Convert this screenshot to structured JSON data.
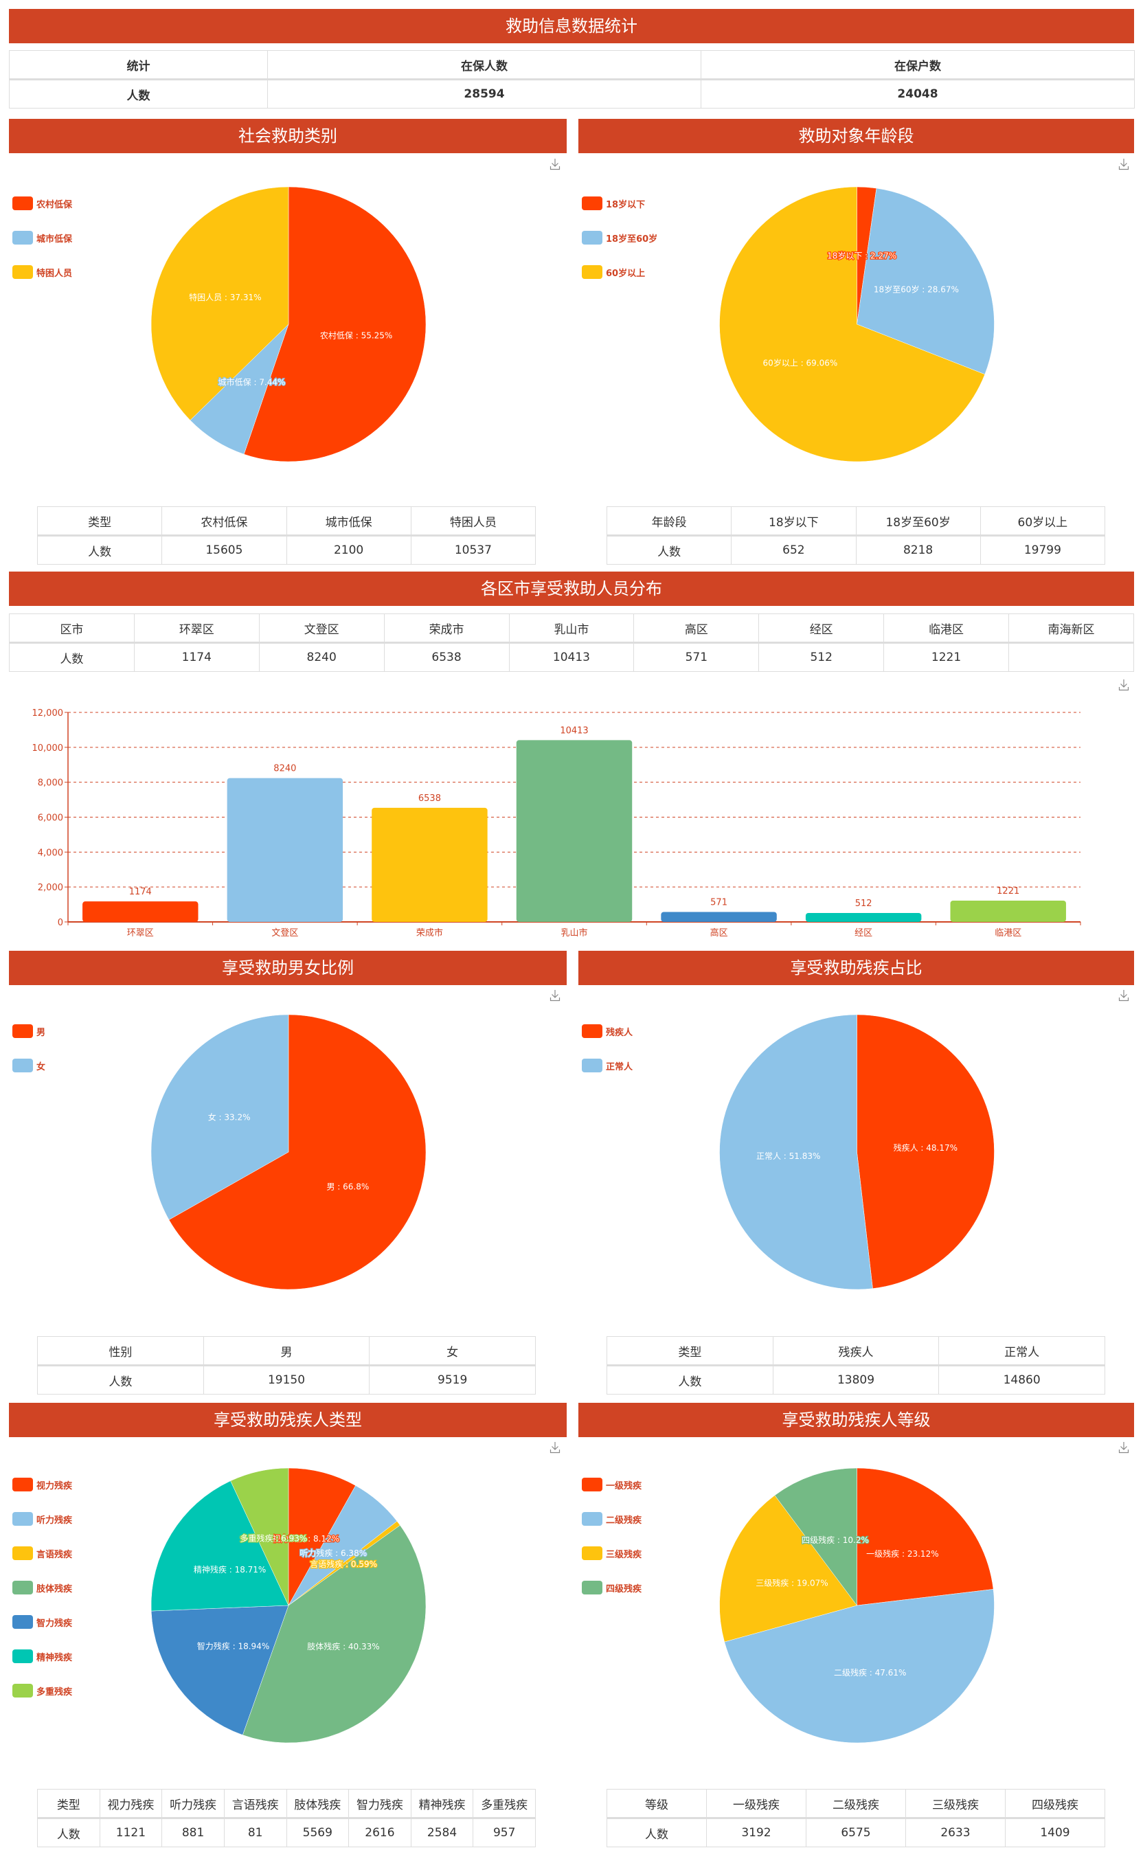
{
  "page": {
    "title": "救助信息数据统计",
    "accent_color": "#d04424"
  },
  "summary_table": {
    "headers": [
      "统计",
      "在保人数",
      "在保户数"
    ],
    "row": [
      "人数",
      "28594",
      "24048"
    ]
  },
  "sections": {
    "aid_category": {
      "title": "社会救助类别",
      "table": {
        "headers": [
          "类型",
          "农村低保",
          "城市低保",
          "特困人员"
        ],
        "row": [
          "人数",
          "15605",
          "2100",
          "10537"
        ]
      }
    },
    "age_group": {
      "title": "救助对象年龄段",
      "table": {
        "headers": [
          "年龄段",
          "18岁以下",
          "18岁至60岁",
          "60岁以上"
        ],
        "row": [
          "人数",
          "652",
          "8218",
          "19799"
        ]
      }
    },
    "district": {
      "title": "各区市享受救助人员分布",
      "table": {
        "headers": [
          "区市",
          "环翠区",
          "文登区",
          "荣成市",
          "乳山市",
          "高区",
          "经区",
          "临港区",
          "南海新区"
        ],
        "row": [
          "人数",
          "1174",
          "8240",
          "6538",
          "10413",
          "571",
          "512",
          "1221",
          ""
        ]
      }
    },
    "gender": {
      "title": "享受救助男女比例",
      "table": {
        "headers": [
          "性别",
          "男",
          "女"
        ],
        "row": [
          "人数",
          "19150",
          "9519"
        ]
      }
    },
    "disability_ratio": {
      "title": "享受救助残疾占比",
      "table": {
        "headers": [
          "类型",
          "残疾人",
          "正常人"
        ],
        "row": [
          "人数",
          "13809",
          "14860"
        ]
      }
    },
    "disability_type": {
      "title": "享受救助残疾人类型",
      "table": {
        "headers": [
          "类型",
          "视力残疾",
          "听力残疾",
          "言语残疾",
          "肢体残疾",
          "智力残疾",
          "精神残疾",
          "多重残疾"
        ],
        "row": [
          "人数",
          "1121",
          "881",
          "81",
          "5569",
          "2616",
          "2584",
          "957"
        ]
      }
    },
    "disability_level": {
      "title": "享受救助残疾人等级",
      "table": {
        "headers": [
          "等级",
          "一级残疾",
          "二级残疾",
          "三级残疾",
          "四级残疾"
        ],
        "row": [
          "人数",
          "3192",
          "6575",
          "2633",
          "1409"
        ]
      }
    }
  },
  "icons": {
    "download": "download-icon"
  },
  "chart_data": [
    {
      "id": "aid_category",
      "type": "pie",
      "title": "社会救助类别",
      "legend": "left",
      "labels": [
        "农村低保",
        "城市低保",
        "特困人员"
      ],
      "values": [
        15605,
        2100,
        10537
      ],
      "percent_labels": [
        "农村低保 : 55.25%",
        "城市低保 : 7.44%",
        "特困人员 : 37.31%"
      ],
      "colors": [
        "#ff4000",
        "#8dc3e8",
        "#fec30e"
      ]
    },
    {
      "id": "age_group",
      "type": "pie",
      "title": "救助对象年龄段",
      "legend": "left",
      "labels": [
        "18岁以下",
        "18岁至60岁",
        "60岁以上"
      ],
      "values": [
        652,
        8218,
        19799
      ],
      "percent_labels": [
        "18岁以下 : 2.27%",
        "18岁至60岁 : 28.67%",
        "60岁以上 : 69.06%"
      ],
      "colors": [
        "#ff4000",
        "#8dc3e8",
        "#fec30e"
      ]
    },
    {
      "id": "district",
      "type": "bar",
      "title": "各区市享受救助人员分布",
      "categories": [
        "环翠区",
        "文登区",
        "荣成市",
        "乳山市",
        "高区",
        "经区",
        "临港区"
      ],
      "values": [
        1174,
        8240,
        6538,
        10413,
        571,
        512,
        1221
      ],
      "colors": [
        "#ff4000",
        "#8dc3e8",
        "#fec30e",
        "#74ba85",
        "#3f89c9",
        "#00c6b3",
        "#9bd24a"
      ],
      "ylim": [
        0,
        12000
      ],
      "yticks": [
        0,
        2000,
        4000,
        6000,
        8000,
        10000,
        12000
      ],
      "ytick_labels": [
        "0",
        "2,000",
        "4,000",
        "6,000",
        "8,000",
        "10,000",
        "12,000"
      ],
      "grid": true,
      "xlabel": "",
      "ylabel": ""
    },
    {
      "id": "gender",
      "type": "pie",
      "title": "享受救助男女比例",
      "legend": "left",
      "labels": [
        "男",
        "女"
      ],
      "values": [
        19150,
        9519
      ],
      "percent_labels": [
        "男 : 66.8%",
        "女 : 33.2%"
      ],
      "colors": [
        "#ff4000",
        "#8dc3e8"
      ]
    },
    {
      "id": "disability_ratio",
      "type": "pie",
      "title": "享受救助残疾占比",
      "legend": "left",
      "labels": [
        "残疾人",
        "正常人"
      ],
      "values": [
        13809,
        14860
      ],
      "percent_labels": [
        "残疾人 : 48.17%",
        "正常人 : 51.83%"
      ],
      "colors": [
        "#ff4000",
        "#8dc3e8"
      ]
    },
    {
      "id": "disability_type",
      "type": "pie",
      "title": "享受救助残疾人类型",
      "legend": "left",
      "labels": [
        "视力残疾",
        "听力残疾",
        "言语残疾",
        "肢体残疾",
        "智力残疾",
        "精神残疾",
        "多重残疾"
      ],
      "values": [
        1121,
        881,
        81,
        5569,
        2616,
        2584,
        957
      ],
      "percent_labels": [
        "视力残疾 : 8.12%",
        "听力残疾 : 6.38%",
        "言语残疾 : 0.59%",
        "肢体残疾 : 40.33%",
        "智力残疾 : 18.94%",
        "精神残疾 : 18.71%",
        "多重残疾 : 6.93%"
      ],
      "colors": [
        "#ff4000",
        "#8dc3e8",
        "#fec30e",
        "#74ba85",
        "#3f89c9",
        "#00c6b3",
        "#9bd24a"
      ]
    },
    {
      "id": "disability_level",
      "type": "pie",
      "title": "享受救助残疾人等级",
      "legend": "left",
      "labels": [
        "一级残疾",
        "二级残疾",
        "三级残疾",
        "四级残疾"
      ],
      "values": [
        3192,
        6575,
        2633,
        1409
      ],
      "percent_labels": [
        "一级残疾 : 23.12%",
        "二级残疾 : 47.61%",
        "三级残疾 : 19.07%",
        "四级残疾 : 10.2%"
      ],
      "colors": [
        "#ff4000",
        "#8dc3e8",
        "#fec30e",
        "#74ba85"
      ]
    }
  ]
}
